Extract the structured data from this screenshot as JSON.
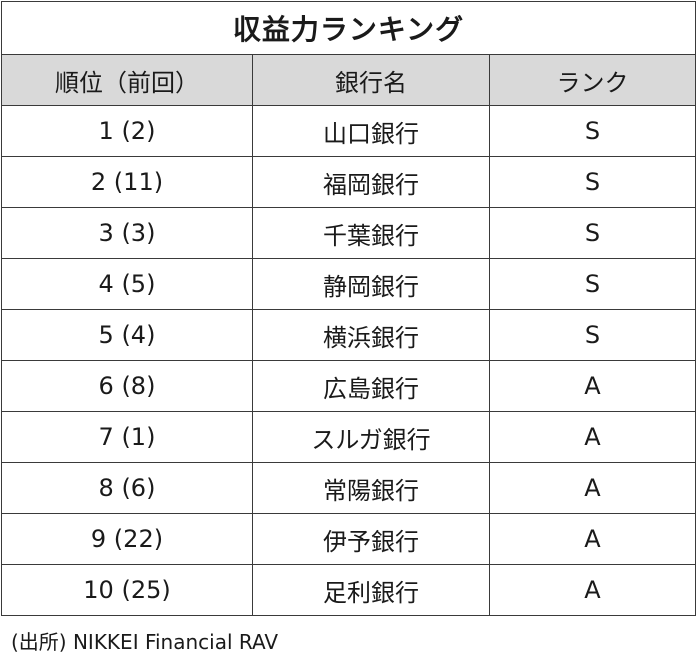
{
  "title": "収益力ランキング",
  "columns": [
    "順位（前回）",
    "銀行名",
    "ランク"
  ],
  "rows": [
    {
      "rank": "1 (2)",
      "bank": "山口銀行",
      "grade": "S"
    },
    {
      "rank": "2 (11)",
      "bank": "福岡銀行",
      "grade": "S"
    },
    {
      "rank": "3 (3)",
      "bank": "千葉銀行",
      "grade": "S"
    },
    {
      "rank": "4 (5)",
      "bank": "静岡銀行",
      "grade": "S"
    },
    {
      "rank": "5 (4)",
      "bank": "横浜銀行",
      "grade": "S"
    },
    {
      "rank": "6 (8)",
      "bank": "広島銀行",
      "grade": "A"
    },
    {
      "rank": "7 (1)",
      "bank": "スルガ銀行",
      "grade": "A"
    },
    {
      "rank": "8 (6)",
      "bank": "常陽銀行",
      "grade": "A"
    },
    {
      "rank": "9 (22)",
      "bank": "伊予銀行",
      "grade": "A"
    },
    {
      "rank": "10 (25)",
      "bank": "足利銀行",
      "grade": "A"
    }
  ],
  "source": "(出所) NIKKEI Financial RAV",
  "colors": {
    "header_background": "#d9d9d9",
    "border": "#3a3a3a",
    "text": "#1a1a1a"
  }
}
